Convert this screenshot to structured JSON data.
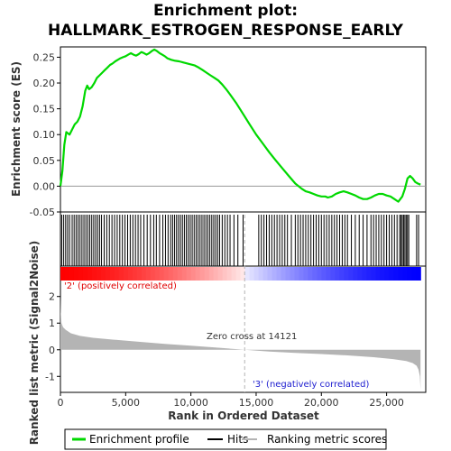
{
  "chart_data": {
    "type": "line",
    "title": "Enrichment plot:",
    "subtitle": "HALLMARK_ESTROGEN_RESPONSE_EARLY",
    "xlabel": "Rank in Ordered Dataset",
    "es_ylabel": "Enrichment score (ES)",
    "metric_ylabel": "Ranked list metric (Signal2Noise)",
    "xlim": [
      0,
      28000
    ],
    "es_ylim": [
      -0.05,
      0.27
    ],
    "metric_ylim": [
      -1.6,
      2.6
    ],
    "x_ticks": [
      0,
      5000,
      10000,
      15000,
      20000,
      25000
    ],
    "x_tick_labels": [
      "0",
      "5,000",
      "10,000",
      "15,000",
      "20,000",
      "25,000"
    ],
    "es_ticks": [
      -0.05,
      0.0,
      0.05,
      0.1,
      0.15,
      0.2,
      0.25
    ],
    "es_tick_labels": [
      "-0.05",
      "0.00",
      "0.05",
      "0.10",
      "0.15",
      "0.20",
      "0.25"
    ],
    "metric_ticks": [
      -1,
      0,
      1,
      2
    ],
    "metric_tick_labels": [
      "-1",
      "0",
      "1",
      "2"
    ],
    "grid": false,
    "legend_position": "bottom",
    "series": [
      {
        "name": "Enrichment profile",
        "color": "#00d800",
        "x": [
          0,
          150,
          300,
          450,
          700,
          900,
          1100,
          1300,
          1500,
          1700,
          1900,
          2050,
          2200,
          2400,
          2600,
          2800,
          3000,
          3200,
          3400,
          3600,
          3800,
          4000,
          4200,
          4400,
          4600,
          4800,
          5000,
          5200,
          5400,
          5600,
          5800,
          6000,
          6200,
          6400,
          6600,
          6800,
          7000,
          7200,
          7400,
          7600,
          7800,
          8000,
          8200,
          8500,
          8800,
          9100,
          9400,
          9700,
          10000,
          10300,
          10600,
          10900,
          11200,
          11500,
          11800,
          12100,
          12400,
          12700,
          13000,
          13500,
          14000,
          14500,
          15000,
          15500,
          16000,
          16500,
          17000,
          17500,
          18000,
          18500,
          18800,
          19100,
          19400,
          19700,
          20000,
          20300,
          20500,
          20800,
          21100,
          21400,
          21700,
          22000,
          22300,
          22600,
          22900,
          23200,
          23500,
          23800,
          24100,
          24400,
          24700,
          25000,
          25300,
          25600,
          25900,
          26200,
          26400,
          26600,
          26800,
          27000,
          27200,
          27400,
          27600
        ],
        "y": [
          0.0,
          0.03,
          0.08,
          0.105,
          0.1,
          0.11,
          0.12,
          0.125,
          0.135,
          0.155,
          0.185,
          0.195,
          0.188,
          0.192,
          0.2,
          0.21,
          0.215,
          0.22,
          0.225,
          0.23,
          0.235,
          0.238,
          0.242,
          0.245,
          0.248,
          0.25,
          0.252,
          0.255,
          0.258,
          0.255,
          0.253,
          0.256,
          0.26,
          0.258,
          0.255,
          0.258,
          0.262,
          0.265,
          0.262,
          0.258,
          0.255,
          0.252,
          0.248,
          0.245,
          0.243,
          0.242,
          0.24,
          0.238,
          0.236,
          0.234,
          0.23,
          0.225,
          0.22,
          0.215,
          0.21,
          0.205,
          0.197,
          0.188,
          0.178,
          0.16,
          0.14,
          0.12,
          0.1,
          0.083,
          0.066,
          0.05,
          0.035,
          0.02,
          0.005,
          -0.005,
          -0.01,
          -0.012,
          -0.015,
          -0.018,
          -0.02,
          -0.02,
          -0.022,
          -0.02,
          -0.015,
          -0.012,
          -0.01,
          -0.012,
          -0.015,
          -0.018,
          -0.022,
          -0.025,
          -0.025,
          -0.022,
          -0.018,
          -0.015,
          -0.015,
          -0.018,
          -0.02,
          -0.025,
          -0.03,
          -0.02,
          -0.005,
          0.015,
          0.02,
          0.015,
          0.008,
          0.005,
          0.003
        ]
      },
      {
        "name": "Hits",
        "color": "#000000"
      },
      {
        "name": "Ranking metric scores",
        "color": "#b4b4b4",
        "x": [
          0,
          30,
          80,
          200,
          400,
          800,
          1500,
          2500,
          4000,
          6000,
          8000,
          10000,
          12000,
          14121,
          16000,
          18000,
          20000,
          22000,
          24000,
          25500,
          26500,
          27000,
          27300,
          27450,
          27550,
          27600
        ],
        "y": [
          2.0,
          1.4,
          1.0,
          0.85,
          0.75,
          0.62,
          0.52,
          0.45,
          0.38,
          0.3,
          0.22,
          0.15,
          0.08,
          0.0,
          -0.07,
          -0.12,
          -0.16,
          -0.21,
          -0.28,
          -0.35,
          -0.42,
          -0.5,
          -0.6,
          -0.75,
          -1.0,
          -1.5
        ]
      }
    ],
    "hits": [
      100,
      250,
      400,
      550,
      700,
      900,
      1050,
      1200,
      1350,
      1500,
      1650,
      1800,
      1950,
      2100,
      2250,
      2400,
      2550,
      2700,
      2850,
      3000,
      3150,
      3350,
      3550,
      3750,
      3950,
      4150,
      4350,
      4550,
      4750,
      4950,
      5150,
      5350,
      5550,
      5750,
      5950,
      6150,
      6400,
      6650,
      6900,
      7150,
      7350,
      7600,
      7850,
      8050,
      8250,
      8450,
      8600,
      8750,
      8900,
      9050,
      9200,
      9350,
      9500,
      9650,
      9800,
      9950,
      10100,
      10250,
      10400,
      10550,
      10700,
      10850,
      11000,
      11150,
      11300,
      11450,
      11600,
      11750,
      11900,
      12050,
      12200,
      12400,
      12600,
      12800,
      13000,
      13300,
      13600,
      14000,
      15200,
      15400,
      15600,
      15800,
      16000,
      16200,
      16400,
      16600,
      16800,
      17000,
      17200,
      17400,
      17700,
      18000,
      18200,
      18400,
      18600,
      18800,
      19000,
      19200,
      19400,
      19600,
      19800,
      20000,
      20200,
      20400,
      20600,
      20800,
      21000,
      21200,
      21400,
      21600,
      21800,
      22000,
      22300,
      22600,
      22900,
      23200,
      23500,
      23800,
      24000,
      24200,
      24400,
      24600,
      24800,
      25000,
      25200,
      25400,
      25600,
      25800,
      26000,
      26100,
      26200,
      26300,
      26400,
      26500,
      26600,
      26700,
      27300,
      27450
    ],
    "zero_cross_rank": 14121,
    "zero_cross_label": "Zero cross at 14121",
    "pos_label": "'2' (positively correlated)",
    "neg_label": "'3' (negatively correlated)",
    "colors": {
      "positive": "#ff0000",
      "negative": "#0000ff",
      "pos_text": "#e00000",
      "neg_text": "#2020d0",
      "hit": "#000000",
      "metric_fill": "#b4b4b4",
      "zero_line": "#b4b4b4"
    }
  }
}
